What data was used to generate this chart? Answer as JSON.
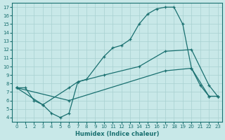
{
  "xlabel": "Humidex (Indice chaleur)",
  "bg_color": "#c8e8e8",
  "line_color": "#1a7070",
  "grid_color": "#a8d0d0",
  "xlim": [
    -0.5,
    23.5
  ],
  "ylim": [
    3.5,
    17.5
  ],
  "xticks": [
    0,
    1,
    2,
    3,
    4,
    5,
    6,
    7,
    8,
    9,
    10,
    11,
    12,
    13,
    14,
    15,
    16,
    17,
    18,
    19,
    20,
    21,
    22,
    23
  ],
  "yticks": [
    4,
    5,
    6,
    7,
    8,
    9,
    10,
    11,
    12,
    13,
    14,
    15,
    16,
    17
  ],
  "line1_x": [
    0,
    1,
    2,
    3,
    4,
    5,
    6,
    7,
    8,
    10,
    11,
    12,
    13,
    14,
    15,
    16,
    17,
    18,
    19,
    20,
    21,
    22,
    23
  ],
  "line1_y": [
    7.5,
    7.5,
    6.0,
    5.5,
    4.5,
    4.0,
    4.5,
    8.2,
    8.5,
    11.2,
    12.2,
    12.5,
    13.2,
    15.0,
    16.2,
    16.8,
    17.0,
    17.0,
    15.0,
    9.8,
    7.8,
    6.5,
    6.5
  ],
  "line2_x": [
    0,
    3,
    6,
    7,
    10,
    14,
    17,
    20,
    22,
    23
  ],
  "line2_y": [
    7.5,
    5.5,
    7.5,
    8.2,
    9.0,
    10.0,
    11.8,
    12.0,
    7.8,
    6.5
  ],
  "line3_x": [
    0,
    6,
    17,
    20,
    22,
    23
  ],
  "line3_y": [
    7.5,
    6.0,
    9.5,
    9.8,
    6.5,
    6.5
  ]
}
